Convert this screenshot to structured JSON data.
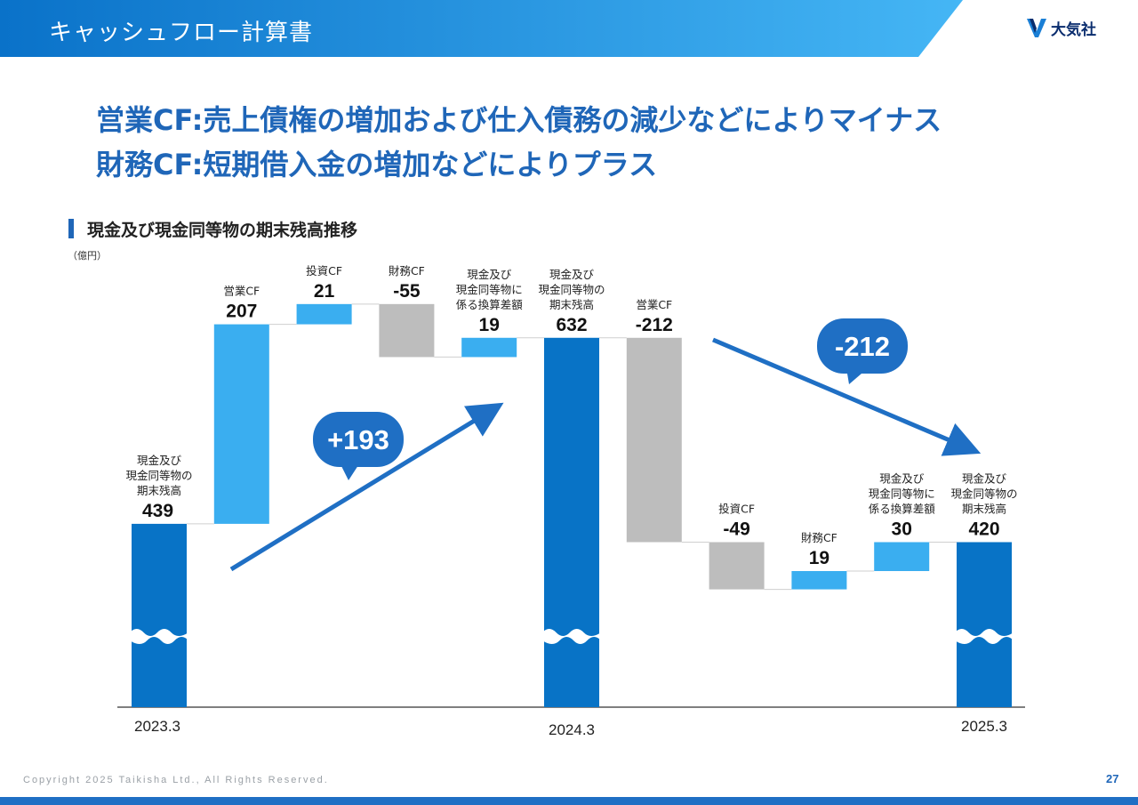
{
  "header": {
    "title": "キャッシュフロー計算書"
  },
  "logo": {
    "text": "大気社"
  },
  "headline": {
    "line1": "営業CF:売上債権の増加および仕入債務の減少などによりマイナス",
    "line2": "財務CF:短期借入金の増加などによりプラス"
  },
  "section": {
    "title": "現金及び現金同等物の期末残高推移",
    "unit": "（億円）"
  },
  "footer": {
    "copyright": "Copyright  2025 Taikisha Ltd., All Rights Reserved.",
    "page": "27"
  },
  "colors": {
    "header_from": "#0a72c9",
    "header_to": "#45b6f5",
    "balance": "#0873c6",
    "increase": "#3aaef0",
    "decrease": "#bdbdbd",
    "bubble": "#1f6fc4",
    "arrow": "#1f6fc4",
    "accent_text": "#1f66b8"
  },
  "chart_data": {
    "type": "waterfall",
    "ylim": [
      0,
      632
    ],
    "axis_break": true,
    "bars": [
      {
        "label": "現金及び|現金同等物の|期末残高",
        "value_text": "439",
        "kind": "balance",
        "start": 0,
        "end": 439,
        "xlabel": "2023.3"
      },
      {
        "label": "営業CF",
        "value_text": "207",
        "kind": "increase",
        "start": 439,
        "end": 646
      },
      {
        "label": "投資CF",
        "value_text": "21",
        "kind": "increase",
        "start": 646,
        "end": 667
      },
      {
        "label": "財務CF",
        "value_text": "-55",
        "kind": "decrease",
        "start": 667,
        "end": 612
      },
      {
        "label": "現金及び|現金同等物に|係る換算差額",
        "value_text": "19",
        "kind": "increase",
        "start": 612,
        "end": 632
      },
      {
        "label": "現金及び|現金同等物の|期末残高",
        "value_text": "632",
        "kind": "balance",
        "start": 0,
        "end": 632,
        "xlabel": "2024.3"
      },
      {
        "label": "営業CF",
        "value_text": "-212",
        "kind": "decrease",
        "start": 632,
        "end": 420
      },
      {
        "label": "投資CF",
        "value_text": "-49",
        "kind": "decrease",
        "start": 420,
        "end": 371
      },
      {
        "label": "財務CF",
        "value_text": "19",
        "kind": "increase",
        "start": 371,
        "end": 390
      },
      {
        "label": "現金及び|現金同等物に|係る換算差額",
        "value_text": "30",
        "kind": "increase",
        "start": 390,
        "end": 420
      },
      {
        "label": "現金及び|現金同等物の|期末残高",
        "value_text": "420",
        "kind": "balance",
        "start": 0,
        "end": 420,
        "xlabel": "2025.3"
      }
    ],
    "annotations": [
      {
        "text": "+193",
        "from_bar": 0,
        "to_bar": 5
      },
      {
        "text": "-212",
        "from_bar": 5,
        "to_bar": 10
      }
    ]
  }
}
